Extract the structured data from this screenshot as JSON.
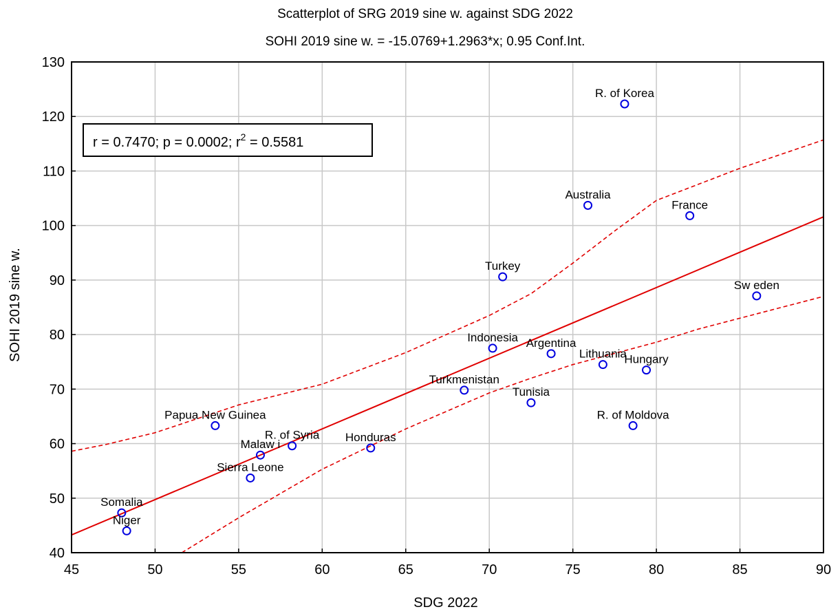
{
  "chart_data": {
    "type": "scatter",
    "title": "Scatterplot of SRG 2019 sine w. against SDG 2022",
    "subtitle": "SOHI 2019 sine w. = -15.0769+1.2963*x; 0.95 Conf.Int.",
    "xlabel": "SDG 2022",
    "ylabel": "SOHI 2019 sine w.",
    "xlim": [
      45,
      90
    ],
    "ylim": [
      40,
      130
    ],
    "x_ticks": [
      45,
      50,
      55,
      60,
      65,
      70,
      75,
      80,
      85,
      90
    ],
    "y_ticks": [
      40,
      50,
      60,
      70,
      80,
      90,
      100,
      110,
      120,
      130
    ],
    "grid": true,
    "stats": {
      "prefix": "r = 0.7470; p = 0.0002; r",
      "sup": "2",
      "suffix": " = 0.5581"
    },
    "regression": {
      "intercept": -15.0769,
      "slope": 1.2963
    },
    "conf_upper": [
      [
        45,
        58.6
      ],
      [
        47,
        59.8
      ],
      [
        50,
        62.0
      ],
      [
        55,
        67.1
      ],
      [
        60,
        70.9
      ],
      [
        65,
        76.7
      ],
      [
        70,
        83.5
      ],
      [
        72.5,
        87.5
      ],
      [
        75,
        93.1
      ],
      [
        77.5,
        99.0
      ],
      [
        80,
        104.6
      ],
      [
        85,
        110.5
      ],
      [
        90,
        115.7
      ]
    ],
    "conf_lower": [
      [
        51.6,
        40.0
      ],
      [
        55,
        46.4
      ],
      [
        60,
        55.3
      ],
      [
        65,
        62.7
      ],
      [
        70,
        69.3
      ],
      [
        72.5,
        72.0
      ],
      [
        75,
        74.5
      ],
      [
        80,
        78.6
      ],
      [
        82.5,
        81.0
      ],
      [
        85,
        83.0
      ],
      [
        90,
        87.0
      ]
    ],
    "points": [
      {
        "label": "R. of Korea",
        "x": 78.1,
        "y": 122.3
      },
      {
        "label": "Australia",
        "x": 75.9,
        "y": 103.7
      },
      {
        "label": "France",
        "x": 82.0,
        "y": 101.8
      },
      {
        "label": "Turkey",
        "x": 70.8,
        "y": 90.6
      },
      {
        "label": "Sw eden",
        "x": 86.0,
        "y": 87.1
      },
      {
        "label": "Indonesia",
        "x": 70.2,
        "y": 77.5
      },
      {
        "label": "Argentina",
        "x": 73.7,
        "y": 76.5
      },
      {
        "label": "Lithuania",
        "x": 76.8,
        "y": 74.5
      },
      {
        "label": "Hungary",
        "x": 79.4,
        "y": 73.5
      },
      {
        "label": "Turkmenistan",
        "x": 68.5,
        "y": 69.8
      },
      {
        "label": "Tunisia",
        "x": 72.5,
        "y": 67.5
      },
      {
        "label": "R. of Moldova",
        "x": 78.6,
        "y": 63.3
      },
      {
        "label": "Papua New Guinea",
        "x": 53.6,
        "y": 63.3
      },
      {
        "label": "R. of Syria",
        "x": 58.2,
        "y": 59.6
      },
      {
        "label": "Malaw i",
        "x": 56.3,
        "y": 57.9
      },
      {
        "label": "Honduras",
        "x": 62.9,
        "y": 59.2
      },
      {
        "label": "Sierra Leone",
        "x": 55.7,
        "y": 53.7
      },
      {
        "label": "Somalia",
        "x": 48.0,
        "y": 47.3
      },
      {
        "label": "Niger",
        "x": 48.3,
        "y": 44.0
      }
    ]
  },
  "colors": {
    "point": "#0000e0",
    "regression": "#e00000",
    "grid": "#c8c8c8"
  }
}
